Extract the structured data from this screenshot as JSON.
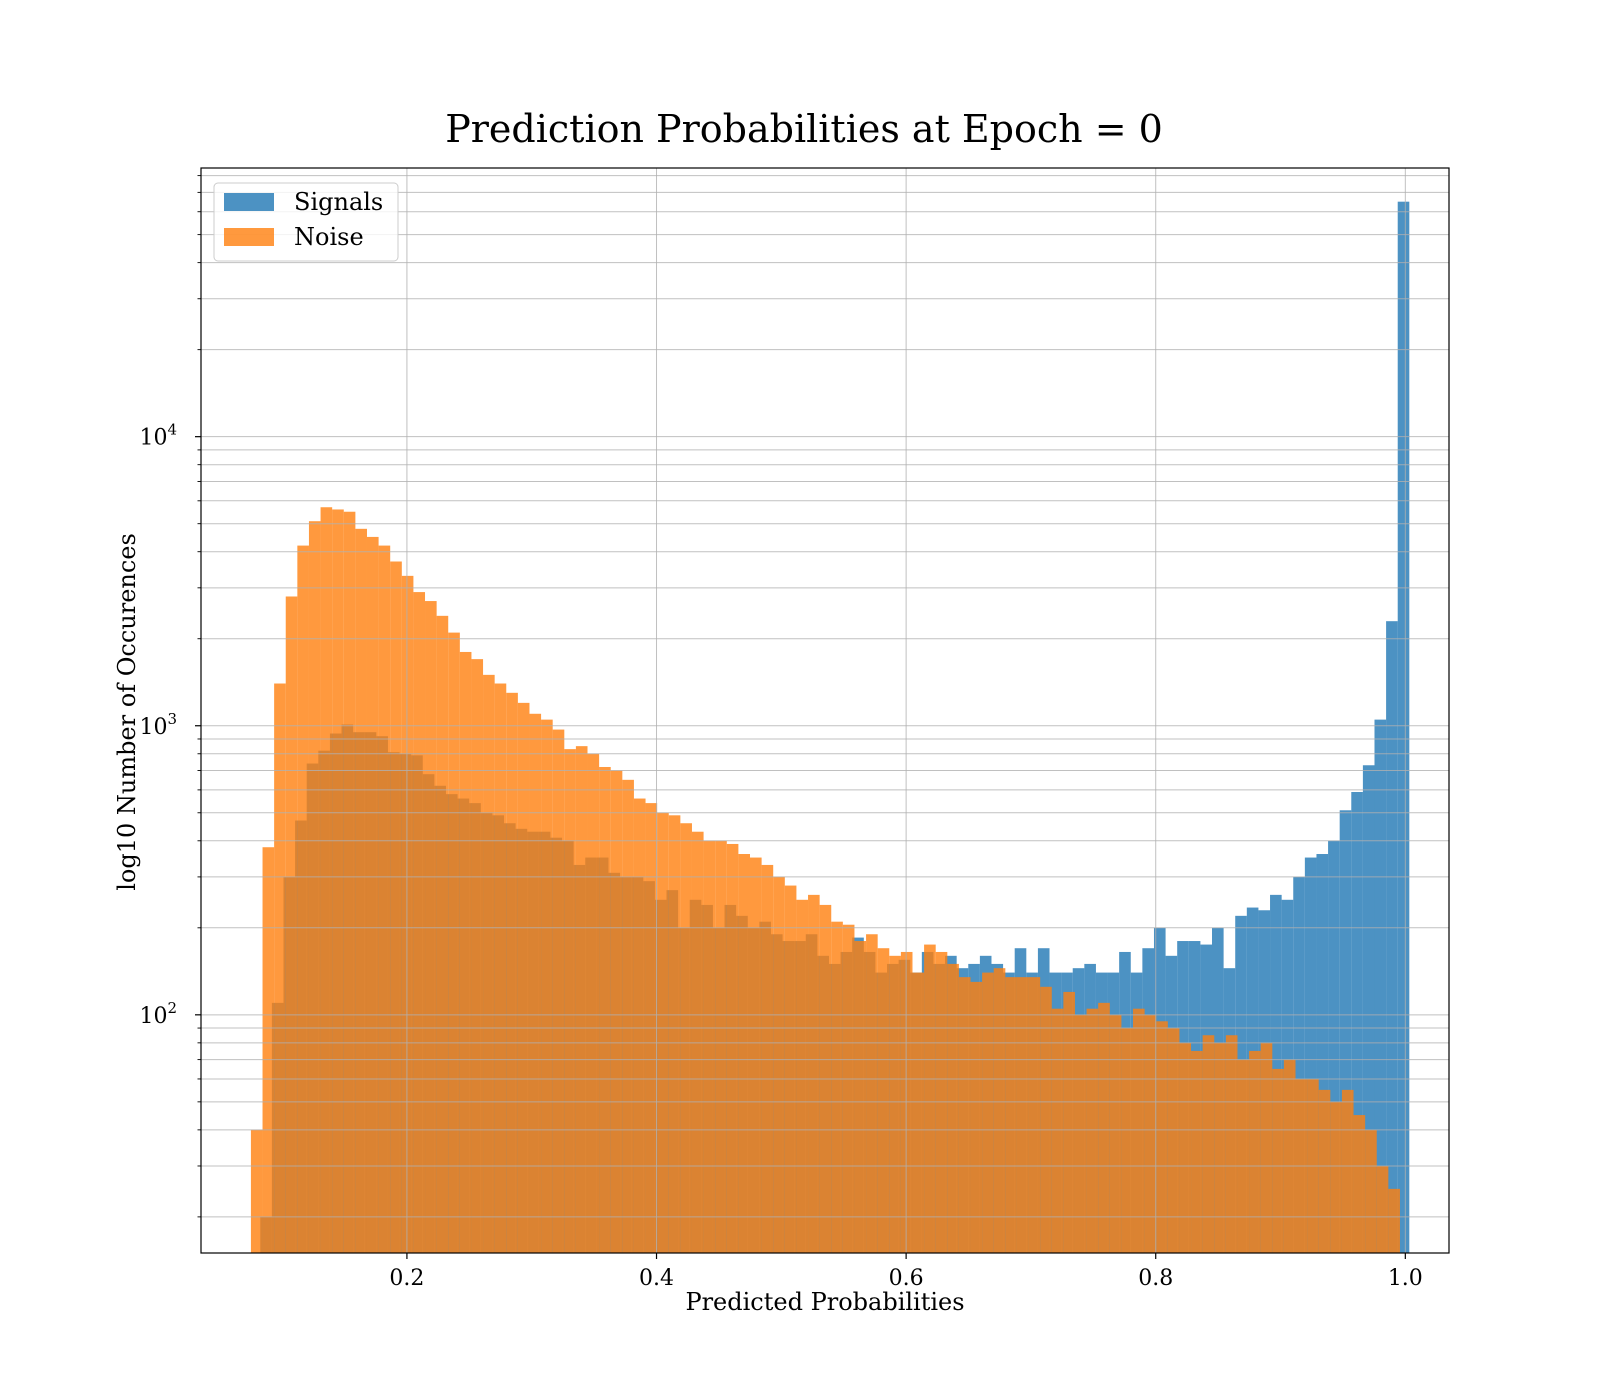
{
  "chart_data": {
    "type": "histogram",
    "title": "Prediction Probabilities at Epoch = 0",
    "xlabel": "Predicted Probabilities",
    "ylabel": "log10 Number of Occurences",
    "xlim": [
      0.035,
      1.035
    ],
    "ylim": [
      15,
      85000
    ],
    "yscale": "log",
    "grid": true,
    "legend_position": "top-left",
    "x_ticks": [
      {
        "value": 0.2,
        "label": "0.2"
      },
      {
        "value": 0.4,
        "label": "0.4"
      },
      {
        "value": 0.6,
        "label": "0.6"
      },
      {
        "value": 0.8,
        "label": "0.8"
      },
      {
        "value": 1.0,
        "label": "1.0"
      }
    ],
    "y_ticks": [
      {
        "value": 100,
        "base": "10",
        "exp": "2"
      },
      {
        "value": 1000,
        "base": "10",
        "exp": "3"
      },
      {
        "value": 10000,
        "base": "10",
        "exp": "4"
      }
    ],
    "series": [
      {
        "name": "Signals",
        "color": "#1f77b4",
        "opacity": 0.8,
        "bins": [
          [
            0.0825,
            0.0918,
            20
          ],
          [
            0.0918,
            0.1011,
            110
          ],
          [
            0.1011,
            0.1104,
            300
          ],
          [
            0.1104,
            0.1197,
            470
          ],
          [
            0.1197,
            0.129,
            740
          ],
          [
            0.129,
            0.1383,
            820
          ],
          [
            0.1383,
            0.1476,
            940
          ],
          [
            0.1476,
            0.1569,
            1010
          ],
          [
            0.1569,
            0.1662,
            950
          ],
          [
            0.1662,
            0.1755,
            950
          ],
          [
            0.1755,
            0.1848,
            920
          ],
          [
            0.1848,
            0.1941,
            810
          ],
          [
            0.1941,
            0.2034,
            800
          ],
          [
            0.2034,
            0.2127,
            790
          ],
          [
            0.2127,
            0.222,
            680
          ],
          [
            0.222,
            0.2313,
            620
          ],
          [
            0.2313,
            0.2406,
            580
          ],
          [
            0.2406,
            0.2499,
            560
          ],
          [
            0.2499,
            0.2592,
            540
          ],
          [
            0.2592,
            0.2685,
            500
          ],
          [
            0.2685,
            0.2778,
            490
          ],
          [
            0.2778,
            0.2871,
            460
          ],
          [
            0.2871,
            0.2964,
            440
          ],
          [
            0.2964,
            0.3057,
            430
          ],
          [
            0.3057,
            0.315,
            430
          ],
          [
            0.315,
            0.3243,
            410
          ],
          [
            0.3243,
            0.3336,
            400
          ],
          [
            0.3336,
            0.3429,
            330
          ],
          [
            0.3429,
            0.3522,
            350
          ],
          [
            0.3522,
            0.3615,
            350
          ],
          [
            0.3615,
            0.3708,
            310
          ],
          [
            0.3708,
            0.3801,
            300
          ],
          [
            0.3801,
            0.3894,
            300
          ],
          [
            0.3894,
            0.3987,
            290
          ],
          [
            0.3987,
            0.408,
            250
          ],
          [
            0.408,
            0.4173,
            270
          ],
          [
            0.4173,
            0.4266,
            200
          ],
          [
            0.4266,
            0.4359,
            250
          ],
          [
            0.4359,
            0.4452,
            240
          ],
          [
            0.4452,
            0.4545,
            200
          ],
          [
            0.4545,
            0.4638,
            240
          ],
          [
            0.4638,
            0.4731,
            220
          ],
          [
            0.4731,
            0.4824,
            200
          ],
          [
            0.4824,
            0.4917,
            210
          ],
          [
            0.4917,
            0.501,
            190
          ],
          [
            0.501,
            0.5103,
            180
          ],
          [
            0.5103,
            0.5196,
            180
          ],
          [
            0.5196,
            0.5289,
            190
          ],
          [
            0.5289,
            0.5382,
            160
          ],
          [
            0.5382,
            0.5475,
            150
          ],
          [
            0.5475,
            0.5568,
            165
          ],
          [
            0.5568,
            0.5661,
            185
          ],
          [
            0.5661,
            0.5754,
            165
          ],
          [
            0.5754,
            0.5847,
            140
          ],
          [
            0.5847,
            0.594,
            150
          ],
          [
            0.594,
            0.6033,
            155
          ],
          [
            0.6033,
            0.6126,
            140
          ],
          [
            0.6126,
            0.6219,
            165
          ],
          [
            0.6219,
            0.6312,
            150
          ],
          [
            0.6312,
            0.6405,
            160
          ],
          [
            0.6405,
            0.6498,
            145
          ],
          [
            0.6498,
            0.6591,
            150
          ],
          [
            0.6591,
            0.6684,
            160
          ],
          [
            0.6684,
            0.6777,
            150
          ],
          [
            0.6777,
            0.687,
            140
          ],
          [
            0.687,
            0.6963,
            170
          ],
          [
            0.6963,
            0.7056,
            140
          ],
          [
            0.7056,
            0.7149,
            170
          ],
          [
            0.7149,
            0.7242,
            140
          ],
          [
            0.7242,
            0.7335,
            140
          ],
          [
            0.7335,
            0.7428,
            145
          ],
          [
            0.7428,
            0.7521,
            150
          ],
          [
            0.7521,
            0.7614,
            140
          ],
          [
            0.7614,
            0.7707,
            140
          ],
          [
            0.7707,
            0.78,
            165
          ],
          [
            0.78,
            0.7893,
            140
          ],
          [
            0.7893,
            0.7986,
            170
          ],
          [
            0.7986,
            0.8079,
            200
          ],
          [
            0.8079,
            0.8172,
            160
          ],
          [
            0.8172,
            0.8265,
            180
          ],
          [
            0.8265,
            0.8358,
            180
          ],
          [
            0.8358,
            0.8451,
            175
          ],
          [
            0.8451,
            0.8544,
            200
          ],
          [
            0.8544,
            0.8637,
            145
          ],
          [
            0.8637,
            0.873,
            220
          ],
          [
            0.873,
            0.8823,
            235
          ],
          [
            0.8823,
            0.8916,
            230
          ],
          [
            0.8916,
            0.9009,
            260
          ],
          [
            0.9009,
            0.9102,
            250
          ],
          [
            0.9102,
            0.9195,
            300
          ],
          [
            0.9195,
            0.9288,
            350
          ],
          [
            0.9288,
            0.9381,
            360
          ],
          [
            0.9381,
            0.9474,
            400
          ],
          [
            0.9474,
            0.9567,
            510
          ],
          [
            0.9567,
            0.966,
            590
          ],
          [
            0.966,
            0.9753,
            730
          ],
          [
            0.9753,
            0.9846,
            1050
          ],
          [
            0.9846,
            0.9939,
            2300
          ],
          [
            0.9939,
            1.0032,
            65000
          ]
        ]
      },
      {
        "name": "Noise",
        "color": "#ff7f0e",
        "opacity": 0.8,
        "bins": [
          [
            0.075,
            0.0843,
            40
          ],
          [
            0.0843,
            0.0936,
            380
          ],
          [
            0.0936,
            0.1029,
            1400
          ],
          [
            0.1029,
            0.1122,
            2800
          ],
          [
            0.1122,
            0.1215,
            4200
          ],
          [
            0.1215,
            0.1308,
            5100
          ],
          [
            0.1308,
            0.1401,
            5700
          ],
          [
            0.1401,
            0.1494,
            5600
          ],
          [
            0.1494,
            0.1587,
            5500
          ],
          [
            0.1587,
            0.168,
            4800
          ],
          [
            0.168,
            0.1773,
            4500
          ],
          [
            0.1773,
            0.1866,
            4200
          ],
          [
            0.1866,
            0.1959,
            3700
          ],
          [
            0.1959,
            0.2052,
            3300
          ],
          [
            0.2052,
            0.2145,
            2900
          ],
          [
            0.2145,
            0.2238,
            2700
          ],
          [
            0.2238,
            0.2331,
            2400
          ],
          [
            0.2331,
            0.2424,
            2100
          ],
          [
            0.2424,
            0.2517,
            1800
          ],
          [
            0.2517,
            0.261,
            1700
          ],
          [
            0.261,
            0.2703,
            1500
          ],
          [
            0.2703,
            0.2796,
            1400
          ],
          [
            0.2796,
            0.2889,
            1300
          ],
          [
            0.2889,
            0.2982,
            1200
          ],
          [
            0.2982,
            0.3075,
            1100
          ],
          [
            0.3075,
            0.3168,
            1050
          ],
          [
            0.3168,
            0.3261,
            970
          ],
          [
            0.3261,
            0.3354,
            830
          ],
          [
            0.3354,
            0.3447,
            850
          ],
          [
            0.3447,
            0.354,
            800
          ],
          [
            0.354,
            0.3633,
            720
          ],
          [
            0.3633,
            0.3726,
            700
          ],
          [
            0.3726,
            0.3819,
            650
          ],
          [
            0.3819,
            0.3912,
            560
          ],
          [
            0.3912,
            0.4005,
            540
          ],
          [
            0.4005,
            0.4098,
            500
          ],
          [
            0.4098,
            0.4191,
            490
          ],
          [
            0.4191,
            0.4284,
            460
          ],
          [
            0.4284,
            0.4377,
            430
          ],
          [
            0.4377,
            0.447,
            400
          ],
          [
            0.447,
            0.4563,
            400
          ],
          [
            0.4563,
            0.4656,
            390
          ],
          [
            0.4656,
            0.4749,
            360
          ],
          [
            0.4749,
            0.4842,
            350
          ],
          [
            0.4842,
            0.4935,
            330
          ],
          [
            0.4935,
            0.5028,
            300
          ],
          [
            0.5028,
            0.5121,
            280
          ],
          [
            0.5121,
            0.5214,
            250
          ],
          [
            0.5214,
            0.5307,
            260
          ],
          [
            0.5307,
            0.54,
            240
          ],
          [
            0.54,
            0.5493,
            210
          ],
          [
            0.5493,
            0.5586,
            205
          ],
          [
            0.5586,
            0.5679,
            180
          ],
          [
            0.5679,
            0.5772,
            190
          ],
          [
            0.5772,
            0.5865,
            170
          ],
          [
            0.5865,
            0.5958,
            160
          ],
          [
            0.5958,
            0.6051,
            165
          ],
          [
            0.6051,
            0.6144,
            140
          ],
          [
            0.6144,
            0.6237,
            175
          ],
          [
            0.6237,
            0.633,
            165
          ],
          [
            0.633,
            0.6423,
            150
          ],
          [
            0.6423,
            0.6516,
            135
          ],
          [
            0.6516,
            0.6609,
            130
          ],
          [
            0.6609,
            0.6702,
            140
          ],
          [
            0.6702,
            0.6795,
            145
          ],
          [
            0.6795,
            0.6888,
            135
          ],
          [
            0.6888,
            0.6981,
            135
          ],
          [
            0.6981,
            0.7074,
            135
          ],
          [
            0.7074,
            0.7167,
            125
          ],
          [
            0.7167,
            0.726,
            105
          ],
          [
            0.726,
            0.7353,
            120
          ],
          [
            0.7353,
            0.7446,
            100
          ],
          [
            0.7446,
            0.7539,
            105
          ],
          [
            0.7539,
            0.7632,
            110
          ],
          [
            0.7632,
            0.7725,
            100
          ],
          [
            0.7725,
            0.7818,
            90
          ],
          [
            0.7818,
            0.7911,
            105
          ],
          [
            0.7911,
            0.8004,
            100
          ],
          [
            0.8004,
            0.8097,
            95
          ],
          [
            0.8097,
            0.819,
            90
          ],
          [
            0.819,
            0.8283,
            80
          ],
          [
            0.8283,
            0.8376,
            75
          ],
          [
            0.8376,
            0.8469,
            85
          ],
          [
            0.8469,
            0.8562,
            80
          ],
          [
            0.8562,
            0.8655,
            85
          ],
          [
            0.8655,
            0.8748,
            70
          ],
          [
            0.8748,
            0.8841,
            75
          ],
          [
            0.8841,
            0.8934,
            80
          ],
          [
            0.8934,
            0.9027,
            65
          ],
          [
            0.9027,
            0.912,
            70
          ],
          [
            0.912,
            0.9213,
            60
          ],
          [
            0.9213,
            0.9306,
            60
          ],
          [
            0.9306,
            0.9399,
            55
          ],
          [
            0.9399,
            0.9492,
            50
          ],
          [
            0.9492,
            0.9585,
            55
          ],
          [
            0.9585,
            0.9678,
            45
          ],
          [
            0.9678,
            0.9771,
            40
          ],
          [
            0.9771,
            0.9864,
            30
          ],
          [
            0.9864,
            0.9957,
            25
          ]
        ]
      }
    ]
  }
}
